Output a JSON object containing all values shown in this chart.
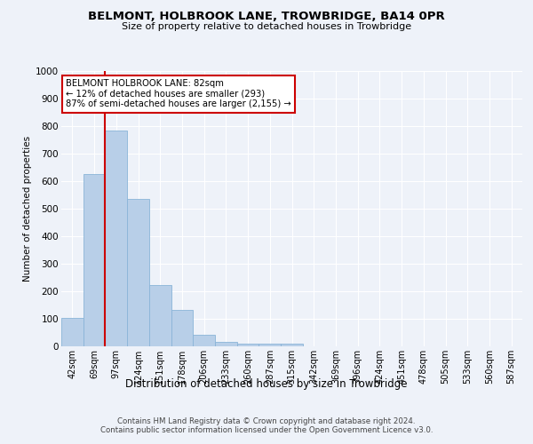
{
  "title1": "BELMONT, HOLBROOK LANE, TROWBRIDGE, BA14 0PR",
  "title2": "Size of property relative to detached houses in Trowbridge",
  "xlabel": "Distribution of detached houses by size in Trowbridge",
  "ylabel": "Number of detached properties",
  "categories": [
    "42sqm",
    "69sqm",
    "97sqm",
    "124sqm",
    "151sqm",
    "178sqm",
    "206sqm",
    "233sqm",
    "260sqm",
    "287sqm",
    "315sqm",
    "342sqm",
    "369sqm",
    "396sqm",
    "424sqm",
    "451sqm",
    "478sqm",
    "505sqm",
    "533sqm",
    "560sqm",
    "587sqm"
  ],
  "values": [
    103,
    625,
    785,
    537,
    222,
    133,
    43,
    15,
    10,
    10,
    10,
    0,
    0,
    0,
    0,
    0,
    0,
    0,
    0,
    0,
    0
  ],
  "bar_color": "#b8cfe8",
  "bar_edge_color": "#8ab4d8",
  "vline_x": 1.5,
  "vline_color": "#cc0000",
  "annotation_text": "BELMONT HOLBROOK LANE: 82sqm\n← 12% of detached houses are smaller (293)\n87% of semi-detached houses are larger (2,155) →",
  "annotation_box_color": "#ffffff",
  "annotation_box_edge_color": "#cc0000",
  "ylim": [
    0,
    1000
  ],
  "yticks": [
    0,
    100,
    200,
    300,
    400,
    500,
    600,
    700,
    800,
    900,
    1000
  ],
  "footer1": "Contains HM Land Registry data © Crown copyright and database right 2024.",
  "footer2": "Contains public sector information licensed under the Open Government Licence v3.0.",
  "bg_color": "#eef2f9",
  "plot_bg_color": "#eef2f9"
}
